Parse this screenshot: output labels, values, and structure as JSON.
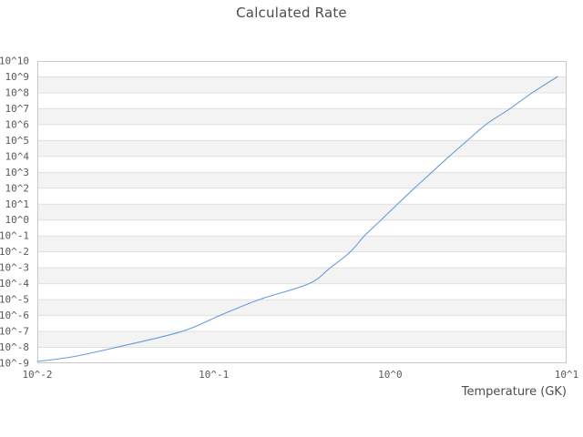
{
  "title": "Calculated Rate",
  "chart_data": {
    "type": "line",
    "title": "Calculated Rate",
    "xlabel": "Temperature (GK)",
    "ylabel": "",
    "x_scale": "log",
    "y_scale": "log",
    "xlim": [
      0.01,
      10
    ],
    "ylim": [
      1e-09,
      10000000000.0
    ],
    "grid": true,
    "legend": "none",
    "background_bands": "alternating decade stripes",
    "x_tick_labels": [
      "10^-2",
      "10^-1",
      "10^0",
      "10^1"
    ],
    "x_tick_values": [
      0.01,
      0.1,
      1,
      10
    ],
    "y_tick_labels": [
      "10^10",
      "10^9",
      "10^8",
      "10^7",
      "10^6",
      "10^5",
      "10^4",
      "10^3",
      "10^2",
      "10^1",
      "10^0",
      "10^-1",
      "10^-2",
      "10^-3",
      "10^-4",
      "10^-5",
      "10^-6",
      "10^-7",
      "10^-8",
      "10^-9"
    ],
    "y_tick_exponents": [
      10,
      9,
      8,
      7,
      6,
      5,
      4,
      3,
      2,
      1,
      0,
      -1,
      -2,
      -3,
      -4,
      -5,
      -6,
      -7,
      -8,
      -9
    ],
    "series": [
      {
        "name": "calculated-rate",
        "x": [
          0.01,
          0.016,
          0.028,
          0.066,
          0.108,
          0.181,
          0.346,
          0.457,
          0.594,
          0.713,
          0.887,
          1.1,
          1.37,
          1.72,
          2.16,
          2.74,
          3.48,
          4.77,
          6.38,
          8.9
        ],
        "y": [
          1.3e-09,
          2.6e-09,
          1e-08,
          1e-07,
          1e-06,
          1e-05,
          0.0001,
          0.001,
          0.01,
          0.1,
          1,
          10,
          100,
          1000,
          10000,
          100000,
          1000000,
          10000000,
          100000000,
          1050000000.0
        ]
      }
    ]
  },
  "colors": {
    "line": "#699bd7",
    "band_gray": "#f3f3f3",
    "gridline": "#e0e0e0",
    "border": "#c9c9c9",
    "tick_text": "#595959",
    "title_text": "#4d4d4d",
    "background": "#ffffff"
  }
}
